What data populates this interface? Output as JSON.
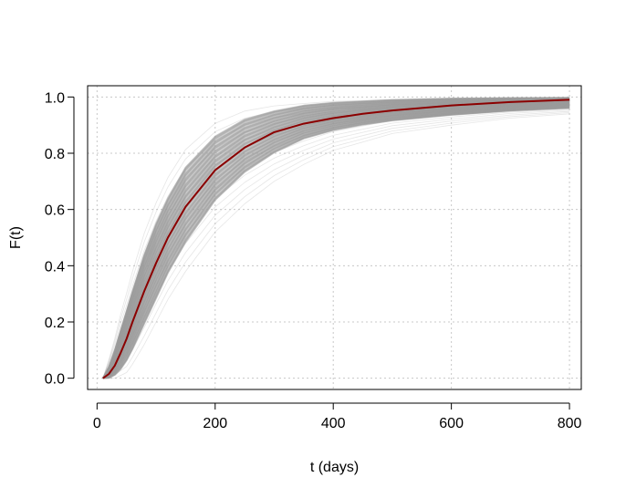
{
  "chart_data": {
    "type": "line",
    "title": "",
    "xlabel": "t (days)",
    "ylabel": "F(t)",
    "xlim": [
      -16,
      820
    ],
    "ylim": [
      -0.04,
      1.04
    ],
    "xticks": [
      0,
      200,
      400,
      600,
      800
    ],
    "yticks": [
      0.0,
      0.2,
      0.4,
      0.6,
      0.8,
      1.0
    ],
    "xtick_labels": [
      "0",
      "200",
      "400",
      "600",
      "800"
    ],
    "ytick_labels": [
      "0.0",
      "0.2",
      "0.4",
      "0.6",
      "0.8",
      "1.0"
    ],
    "grid": true,
    "legend": "none",
    "colors": {
      "mean_curve": "#8b0000",
      "sample_curves": "#9a9a9a",
      "grid": "#c8c8c8",
      "axes": "#000000"
    },
    "series": [
      {
        "role": "mean",
        "x": [
          10,
          20,
          30,
          40,
          50,
          60,
          80,
          100,
          120,
          150,
          200,
          250,
          300,
          350,
          400,
          450,
          500,
          600,
          700,
          800
        ],
        "y": [
          0.0,
          0.015,
          0.045,
          0.09,
          0.14,
          0.2,
          0.31,
          0.41,
          0.5,
          0.61,
          0.74,
          0.82,
          0.875,
          0.905,
          0.925,
          0.94,
          0.952,
          0.97,
          0.982,
          0.99
        ]
      },
      {
        "role": "samples",
        "count": 1000,
        "band_lower": [
          0.0,
          0.0,
          0.01,
          0.03,
          0.06,
          0.1,
          0.19,
          0.28,
          0.37,
          0.48,
          0.63,
          0.73,
          0.8,
          0.85,
          0.88,
          0.9,
          0.915,
          0.935,
          0.95,
          0.96
        ],
        "band_upper": [
          0.0,
          0.04,
          0.1,
          0.17,
          0.24,
          0.31,
          0.44,
          0.55,
          0.64,
          0.75,
          0.86,
          0.92,
          0.95,
          0.97,
          0.98,
          0.985,
          0.99,
          0.995,
          0.997,
          0.998
        ],
        "outer_lower": [
          0.0,
          0.0,
          0.0,
          0.01,
          0.02,
          0.05,
          0.12,
          0.2,
          0.28,
          0.38,
          0.52,
          0.62,
          0.7,
          0.76,
          0.81,
          0.84,
          0.87,
          0.9,
          0.925,
          0.94
        ],
        "outer_upper": [
          0.0,
          0.07,
          0.15,
          0.24,
          0.32,
          0.4,
          0.54,
          0.65,
          0.74,
          0.84,
          0.93,
          0.97,
          0.985,
          0.99,
          0.995,
          0.997,
          0.998,
          0.999,
          1.0,
          1.0
        ]
      }
    ]
  }
}
